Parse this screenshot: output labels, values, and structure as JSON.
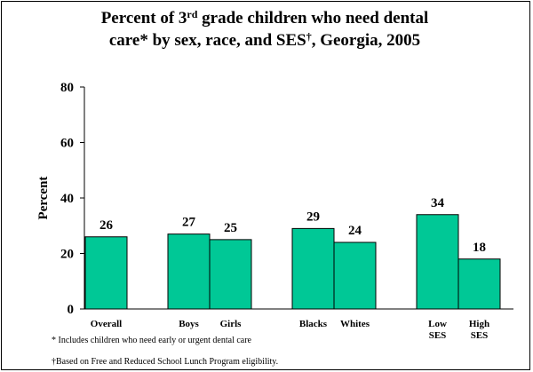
{
  "title": {
    "part1": "Percent of 3",
    "sup1": "rd",
    "part2": " grade children who need dental",
    "line2a": "care* by sex, race, and SES",
    "sup2": "†",
    "line2b": ", Georgia, 2005"
  },
  "footnotes": {
    "note1": "* Includes children who need early or urgent dental care",
    "note2": "†Based on Free and Reduced School Lunch Program eligibility."
  },
  "colors": {
    "bar": "#00C896",
    "bar_stroke": "#000000"
  },
  "chart_data": {
    "type": "bar",
    "categories": [
      "Overall",
      "Boys",
      "Girls",
      "Blacks",
      "Whites",
      "Low SES",
      "High SES"
    ],
    "category_lines": [
      [
        "Overall"
      ],
      [
        "Boys"
      ],
      [
        "Girls"
      ],
      [
        "Blacks"
      ],
      [
        "Whites"
      ],
      [
        "Low",
        "SES"
      ],
      [
        "High",
        "SES"
      ]
    ],
    "groups": [
      [
        0
      ],
      [
        1,
        2
      ],
      [
        3,
        4
      ],
      [
        5,
        6
      ]
    ],
    "values": [
      26,
      27,
      25,
      29,
      24,
      34,
      18
    ],
    "value_labels": [
      "26",
      "27",
      "25",
      "29",
      "24",
      "34",
      "18"
    ],
    "ylabel": "Percent",
    "xlabel": "",
    "ylim": [
      0,
      80
    ],
    "yticks": [
      0,
      20,
      40,
      60,
      80
    ],
    "grid": false,
    "legend": "none"
  }
}
